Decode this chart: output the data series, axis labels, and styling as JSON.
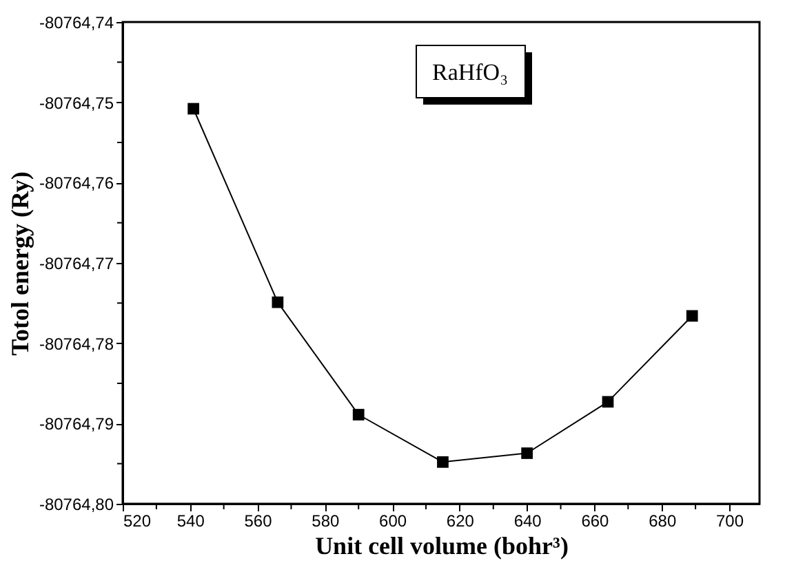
{
  "chart_data": {
    "type": "line",
    "xlabel": "Unit cell volume (bohr³)",
    "ylabel": "Totol energy (Ry)",
    "annotations": [
      "RaHfO₃"
    ],
    "x": [
      541,
      566,
      590,
      615,
      640,
      664,
      689
    ],
    "series": [
      {
        "color": "#000000",
        "values": [
          -80764.7508,
          -80764.7749,
          -80764.7889,
          -80764.7948,
          -80764.7937,
          -80764.7873,
          -80764.7766
        ]
      }
    ],
    "xlim": [
      520,
      709
    ],
    "xticks": [
      520,
      {
        "value": 530,
        "label": null
      },
      540,
      {
        "value": 550,
        "label": null
      },
      560,
      {
        "value": 570,
        "label": null
      },
      580,
      {
        "value": 590,
        "label": null
      },
      600,
      {
        "value": 610,
        "label": null
      },
      620,
      {
        "value": 630,
        "label": null
      },
      640,
      {
        "value": 650,
        "label": null
      },
      660,
      {
        "value": 670,
        "label": null
      },
      680,
      {
        "value": 690,
        "label": null
      },
      700
    ],
    "ylim": [
      -80764.8,
      -80764.74
    ],
    "yticks": [
      {
        "value": -80764.8,
        "label": "-80764,80"
      },
      {
        "value": -80764.795,
        "label": null
      },
      {
        "value": -80764.79,
        "label": "-80764,79"
      },
      {
        "value": -80764.785,
        "label": null
      },
      {
        "value": -80764.78,
        "label": "-80764,78"
      },
      {
        "value": -80764.775,
        "label": null
      },
      {
        "value": -80764.77,
        "label": "-80764,77"
      },
      {
        "value": -80764.765,
        "label": null
      },
      {
        "value": -80764.76,
        "label": "-80764,76"
      },
      {
        "value": -80764.755,
        "label": null
      },
      {
        "value": -80764.75,
        "label": "-80764,75"
      },
      {
        "value": -80764.745,
        "label": null
      },
      {
        "value": -80764.74,
        "label": "-80764,74"
      }
    ],
    "marker": "square",
    "line_style": "solid",
    "grid": false,
    "legend": false
  }
}
